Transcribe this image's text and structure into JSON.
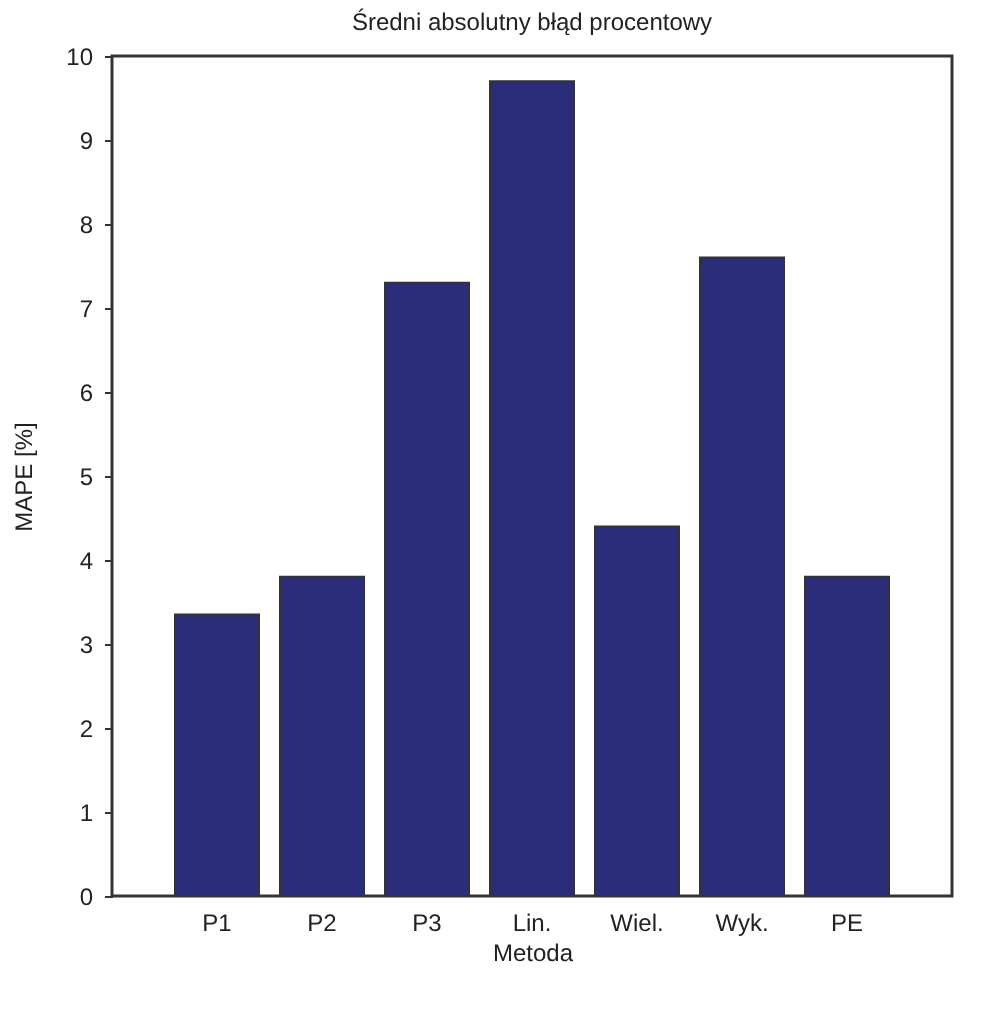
{
  "chart_data": {
    "type": "bar",
    "title": "Średni absolutny błąd procentowy",
    "xlabel": "Metoda",
    "ylabel": "MAPE [%]",
    "categories": [
      "P1",
      "P2",
      "P3",
      "Lin.",
      "Wiel.",
      "Wyk.",
      "PE"
    ],
    "values": [
      3.35,
      3.8,
      7.3,
      9.7,
      4.4,
      7.6,
      3.8
    ],
    "color": "#2b2d7b",
    "ylim": [
      0,
      10
    ],
    "yticks": [
      0,
      1,
      2,
      3,
      4,
      5,
      6,
      7,
      8,
      9,
      10
    ],
    "grid": false
  }
}
